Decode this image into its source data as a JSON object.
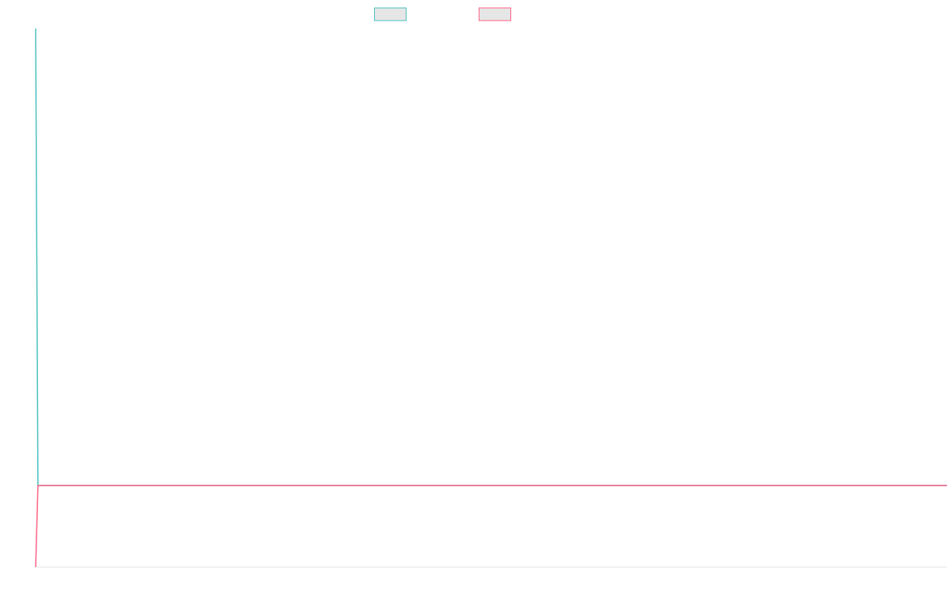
{
  "chart_data": {
    "type": "line",
    "title": "",
    "xlabel": "",
    "ylabel": "",
    "legend": {
      "position": "top",
      "show": true
    },
    "grid": false,
    "x_range": [
      0,
      1
    ],
    "y_range": [
      -1,
      5.6
    ],
    "baseline": 0,
    "series": [
      {
        "name": "",
        "color": "#4bc0c0",
        "fill": "#e6e6e6",
        "points": [
          {
            "x": 0.0,
            "y": 5.6
          },
          {
            "x": 0.0025,
            "y": 0.0
          },
          {
            "x": 1.0,
            "y": 0.0
          }
        ]
      },
      {
        "name": "",
        "color": "#ff6384",
        "fill": "#e6e6e6",
        "points": [
          {
            "x": 0.0,
            "y": -1.0
          },
          {
            "x": 0.0025,
            "y": 0.0
          },
          {
            "x": 1.0,
            "y": 0.0
          }
        ]
      }
    ]
  }
}
